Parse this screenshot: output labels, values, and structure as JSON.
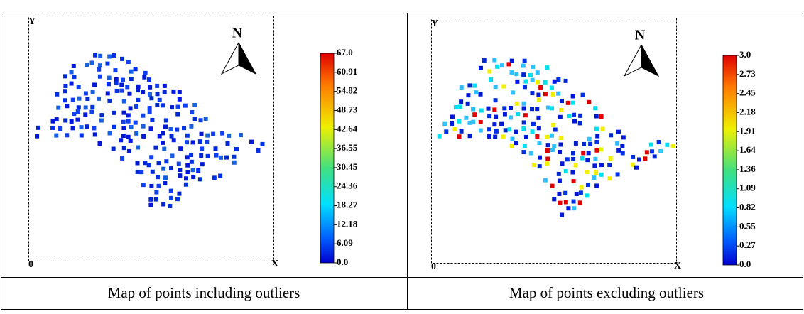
{
  "panels": [
    {
      "axes": {
        "y": "Y",
        "origin": "0",
        "x": "X"
      },
      "north": "N",
      "colorbar": [
        "67.0",
        "60.91",
        "54.82",
        "48.73",
        "42.64",
        "36.55",
        "30.45",
        "24.36",
        "18.27",
        "12.18",
        "6.09",
        "0.0"
      ],
      "caption": "Map of points including outliers"
    },
    {
      "axes": {
        "y": "Y",
        "origin": "0",
        "x": "X"
      },
      "north": "N",
      "colorbar": [
        "3.0",
        "2.73",
        "2.45",
        "2.18",
        "1.91",
        "1.64",
        "1.36",
        "1.09",
        "0.82",
        "0.55",
        "0.27",
        "0.0"
      ],
      "caption": "Map of points excluding outliers"
    }
  ]
}
